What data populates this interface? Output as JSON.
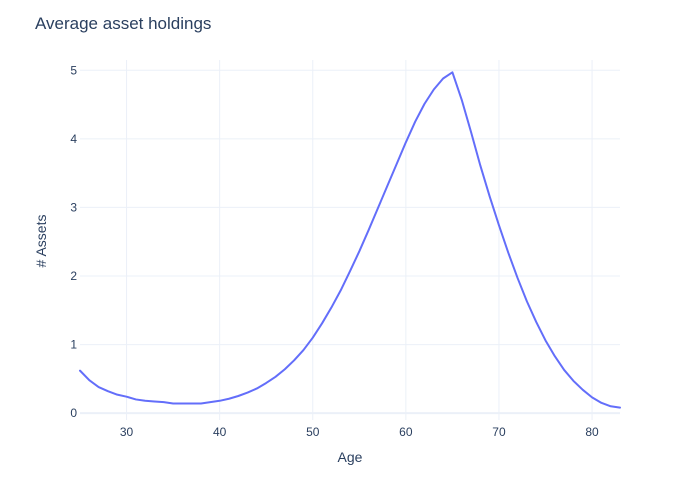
{
  "chart_data": {
    "type": "line",
    "title": "Average asset holdings",
    "xlabel": "Age",
    "ylabel": "# Assets",
    "xlim": [
      25,
      83
    ],
    "ylim": [
      -0.1,
      5.15
    ],
    "x_ticks": [
      30,
      40,
      50,
      60,
      70,
      80
    ],
    "y_ticks": [
      0,
      1,
      2,
      3,
      4,
      5
    ],
    "grid": true,
    "legend": "none",
    "series": [
      {
        "color": "#636efa",
        "x": [
          25,
          26,
          27,
          28,
          29,
          30,
          31,
          32,
          33,
          34,
          35,
          36,
          37,
          38,
          39,
          40,
          41,
          42,
          43,
          44,
          45,
          46,
          47,
          48,
          49,
          50,
          51,
          52,
          53,
          54,
          55,
          56,
          57,
          58,
          59,
          60,
          61,
          62,
          63,
          64,
          65,
          66,
          67,
          68,
          69,
          70,
          71,
          72,
          73,
          74,
          75,
          76,
          77,
          78,
          79,
          80,
          81,
          82,
          83
        ],
        "y": [
          0.62,
          0.48,
          0.38,
          0.32,
          0.27,
          0.24,
          0.2,
          0.18,
          0.17,
          0.16,
          0.14,
          0.14,
          0.14,
          0.14,
          0.16,
          0.18,
          0.21,
          0.25,
          0.3,
          0.36,
          0.44,
          0.53,
          0.64,
          0.77,
          0.92,
          1.1,
          1.31,
          1.54,
          1.79,
          2.07,
          2.36,
          2.67,
          2.99,
          3.31,
          3.63,
          3.95,
          4.25,
          4.51,
          4.72,
          4.88,
          4.97,
          4.57,
          4.1,
          3.61,
          3.16,
          2.74,
          2.34,
          1.97,
          1.63,
          1.33,
          1.06,
          0.83,
          0.63,
          0.47,
          0.34,
          0.23,
          0.15,
          0.1,
          0.08
        ]
      }
    ]
  }
}
